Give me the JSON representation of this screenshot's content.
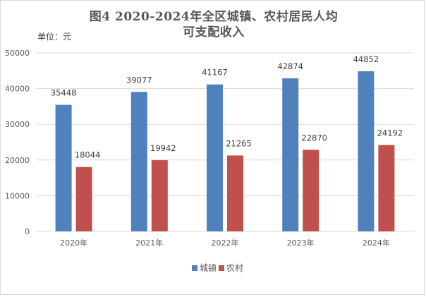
{
  "title_line1": "图4 2020-2024年全区城镇、农村居民人均",
  "title_line2": "可支配收入",
  "unit_label": "单位：元",
  "colors": {
    "urban": "#4F81BD",
    "rural": "#C0504D",
    "grid": "#D9D9D9"
  },
  "chart_data": {
    "type": "bar",
    "categories": [
      "2020年",
      "2021年",
      "2022年",
      "2023年",
      "2024年"
    ],
    "series": [
      {
        "name": "城镇",
        "values": [
          35448,
          39077,
          41167,
          42874,
          44852
        ]
      },
      {
        "name": "农村",
        "values": [
          18044,
          19942,
          21265,
          22870,
          24192
        ]
      }
    ],
    "ylim": [
      0,
      50000
    ],
    "yticks": [
      0,
      10000,
      20000,
      30000,
      40000,
      50000
    ],
    "grid": true,
    "legend": "bottom"
  }
}
